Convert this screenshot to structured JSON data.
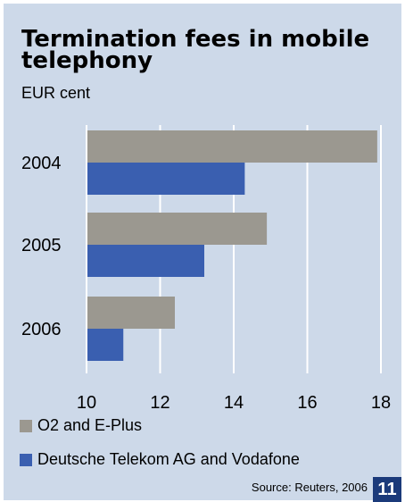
{
  "header": {
    "title": "Termination fees in mobile telephony",
    "unit": "EUR cent"
  },
  "footer": {
    "source": "Source: Reuters, 2006",
    "page_number": "11"
  },
  "chart_data": {
    "type": "bar",
    "orientation": "horizontal",
    "title": "Termination fees in mobile telephony",
    "subtitle": "EUR cent",
    "categories": [
      "2004",
      "2005",
      "2006"
    ],
    "series": [
      {
        "name": "O2 and E-Plus",
        "color": "#9b9890",
        "values": [
          17.9,
          14.9,
          12.4
        ]
      },
      {
        "name": "Deutsche Telekom AG and Vodafone",
        "color": "#3a5fb0",
        "values": [
          14.3,
          13.2,
          11.0
        ]
      }
    ],
    "xlim": [
      10,
      18
    ],
    "xticks": [
      "10",
      "12",
      "14",
      "16",
      "18"
    ],
    "grid": true,
    "legend": "bottom"
  }
}
